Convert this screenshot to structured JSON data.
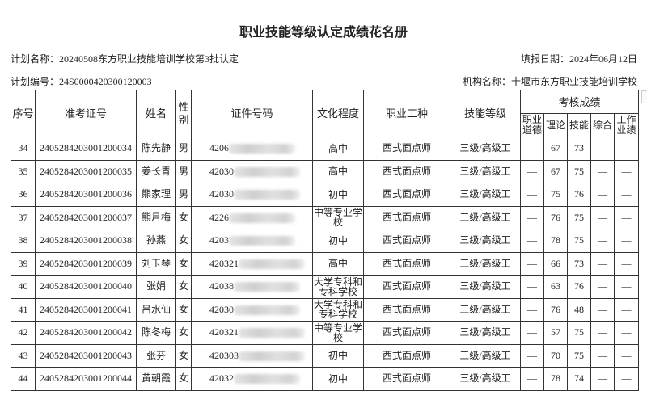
{
  "title": "职业技能等级认定成绩花名册",
  "plan_name": "计划名称：20240508东方职业技能培训学校第3批认定",
  "fill_date": "填报日期：2024年06月12日",
  "plan_no": "计划编号：24S000042030012000З",
  "org_name": "机构名称：十堰市东方职业技能培训学校",
  "headers": {
    "seq": "序号",
    "exam_id": "准考证号",
    "name": "姓名",
    "gender": "性别",
    "id_no": "证件号码",
    "education": "文化程度",
    "occupation": "职业工种",
    "level": "技能等级",
    "scores": "考核成绩",
    "moral": "职业道德",
    "theory": "理论",
    "skill": "技能",
    "combined": "综合",
    "work": "工作业绩"
  },
  "rows": [
    {
      "seq": "34",
      "exam_id": "2405284203001200034",
      "name": "陈先静",
      "gender": "男",
      "id_no": "4206",
      "education": "高中",
      "occupation": "西式面点师",
      "level": "三级/高级工",
      "moral": "—",
      "theory": "67",
      "skill": "73",
      "combined": "—",
      "work": "—"
    },
    {
      "seq": "35",
      "exam_id": "2405284203001200035",
      "name": "姜长青",
      "gender": "男",
      "id_no": "42030",
      "education": "高中",
      "occupation": "西式面点师",
      "level": "三级/高级工",
      "moral": "—",
      "theory": "67",
      "skill": "75",
      "combined": "—",
      "work": "—"
    },
    {
      "seq": "36",
      "exam_id": "2405284203001200036",
      "name": "熊家理",
      "gender": "男",
      "id_no": "42030",
      "education": "初中",
      "occupation": "西式面点师",
      "level": "三级/高级工",
      "moral": "—",
      "theory": "75",
      "skill": "76",
      "combined": "—",
      "work": "—"
    },
    {
      "seq": "37",
      "exam_id": "2405284203001200037",
      "name": "熊月梅",
      "gender": "女",
      "id_no": "4226",
      "education": "中等专业学校",
      "occupation": "西式面点师",
      "level": "三级/高级工",
      "moral": "—",
      "theory": "76",
      "skill": "75",
      "combined": "—",
      "work": "—"
    },
    {
      "seq": "38",
      "exam_id": "2405284203001200038",
      "name": "孙燕",
      "gender": "女",
      "id_no": "4203",
      "education": "初中",
      "occupation": "西式面点师",
      "level": "三级/高级工",
      "moral": "—",
      "theory": "78",
      "skill": "75",
      "combined": "—",
      "work": "—"
    },
    {
      "seq": "39",
      "exam_id": "2405284203001200039",
      "name": "刘玉琴",
      "gender": "女",
      "id_no": "420321",
      "education": "高中",
      "occupation": "西式面点师",
      "level": "三级/高级工",
      "moral": "—",
      "theory": "66",
      "skill": "73",
      "combined": "—",
      "work": "—"
    },
    {
      "seq": "40",
      "exam_id": "2405284203001200040",
      "name": "张娟",
      "gender": "女",
      "id_no": "42038",
      "education": "大学专科和专科学校",
      "occupation": "西式面点师",
      "level": "三级/高级工",
      "moral": "—",
      "theory": "63",
      "skill": "76",
      "combined": "—",
      "work": "—"
    },
    {
      "seq": "41",
      "exam_id": "2405284203001200041",
      "name": "吕水仙",
      "gender": "女",
      "id_no": "42030",
      "education": "大学专科和专科学校",
      "occupation": "西式面点师",
      "level": "三级/高级工",
      "moral": "—",
      "theory": "76",
      "skill": "48",
      "combined": "—",
      "work": "—"
    },
    {
      "seq": "42",
      "exam_id": "2405284203001200042",
      "name": "陈冬梅",
      "gender": "女",
      "id_no": "420321",
      "education": "中等专业学校",
      "occupation": "西式面点师",
      "level": "三级/高级工",
      "moral": "—",
      "theory": "57",
      "skill": "75",
      "combined": "—",
      "work": "—"
    },
    {
      "seq": "43",
      "exam_id": "2405284203001200043",
      "name": "张芬",
      "gender": "女",
      "id_no": "420303",
      "education": "初中",
      "occupation": "西式面点师",
      "level": "三级/高级工",
      "moral": "—",
      "theory": "70",
      "skill": "75",
      "combined": "—",
      "work": "—"
    },
    {
      "seq": "44",
      "exam_id": "2405284203001200044",
      "name": "黄朝霞",
      "gender": "女",
      "id_no": "42032",
      "education": "初中",
      "occupation": "西式面点师",
      "level": "三级/高级工",
      "moral": "—",
      "theory": "78",
      "skill": "74",
      "combined": "—",
      "work": "—"
    }
  ]
}
